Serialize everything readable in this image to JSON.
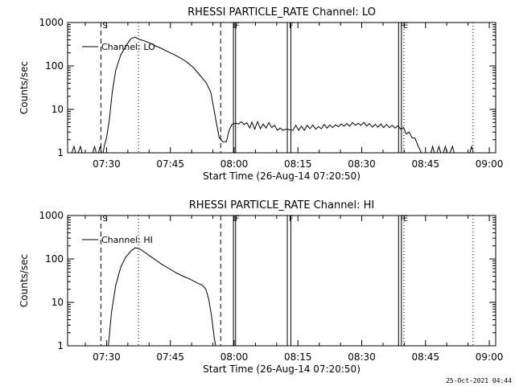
{
  "footer_timestamp": "25-Oct-2021 04:44",
  "chart_data": [
    {
      "type": "line",
      "title": "RHESSI PARTICLE_RATE Channel: LO",
      "xlabel": "Start Time (26-Aug-14 07:20:50)",
      "ylabel": "Counts/sec",
      "xlim": [
        "07:20:50",
        "09:01:30"
      ],
      "ylim": [
        1,
        1000
      ],
      "yscale": "log",
      "x_ticks": [
        "07:30",
        "07:45",
        "08:00",
        "08:15",
        "08:30",
        "08:45",
        "09:00"
      ],
      "y_ticks": [
        "1",
        "10",
        "100",
        "1000"
      ],
      "legend": {
        "label": "Channel: LO",
        "placement": "top-left"
      },
      "markers": [
        {
          "time": "07:28:40",
          "style": "dashed",
          "label": "S"
        },
        {
          "time": "07:56:50",
          "style": "dashed",
          "label": ""
        },
        {
          "time": "07:37:30",
          "style": "dotted",
          "label": ""
        },
        {
          "time": "07:59:50",
          "style": "solid",
          "label": "F"
        },
        {
          "time": "08:00:20",
          "style": "solid",
          "label": ""
        },
        {
          "time": "08:12:30",
          "style": "solid",
          "label": "F"
        },
        {
          "time": "08:13:20",
          "style": "solid",
          "label": ""
        },
        {
          "time": "08:38:40",
          "style": "solid",
          "label": "F"
        },
        {
          "time": "08:39:20",
          "style": "solid",
          "label": "E"
        },
        {
          "time": "08:39:55",
          "style": "dotted",
          "label": ""
        },
        {
          "time": "08:56:10",
          "style": "dotted",
          "label": ""
        }
      ],
      "series": [
        {
          "name": "Channel: LO",
          "points": [
            [
              "07:20:50",
              1
            ],
            [
              "07:21:30",
              0.8
            ],
            [
              "07:22:20",
              1.4
            ],
            [
              "07:23:00",
              0.8
            ],
            [
              "07:23:50",
              1.4
            ],
            [
              "07:24:30",
              0.8
            ],
            [
              "07:26:30",
              0.8
            ],
            [
              "07:27:10",
              1.4
            ],
            [
              "07:27:50",
              0.8
            ],
            [
              "07:28:30",
              1.4
            ],
            [
              "07:29:00",
              0.8
            ],
            [
              "07:29:30",
              1.5
            ],
            [
              "07:30:00",
              2.2
            ],
            [
              "07:30:40",
              6
            ],
            [
              "07:31:20",
              25
            ],
            [
              "07:32:10",
              80
            ],
            [
              "07:33:20",
              180
            ],
            [
              "07:34:40",
              300
            ],
            [
              "07:35:40",
              420
            ],
            [
              "07:36:40",
              460
            ],
            [
              "07:37:40",
              410
            ],
            [
              "07:38:50",
              380
            ],
            [
              "07:40:00",
              340
            ],
            [
              "07:41:30",
              290
            ],
            [
              "07:43:00",
              250
            ],
            [
              "07:44:30",
              210
            ],
            [
              "07:46:00",
              180
            ],
            [
              "07:47:30",
              150
            ],
            [
              "07:49:00",
              120
            ],
            [
              "07:50:30",
              90
            ],
            [
              "07:52:00",
              60
            ],
            [
              "07:53:30",
              40
            ],
            [
              "07:54:30",
              25
            ],
            [
              "07:55:20",
              9
            ],
            [
              "07:56:00",
              4
            ],
            [
              "07:56:30",
              2.2
            ],
            [
              "07:57:20",
              1.8
            ],
            [
              "07:58:10",
              1.8
            ],
            [
              "07:58:50",
              3.3
            ],
            [
              "07:59:30",
              4.5
            ],
            [
              "08:00:20",
              4.8
            ],
            [
              "08:01:00",
              4.6
            ],
            [
              "08:01:40",
              5.2
            ],
            [
              "08:02:20",
              4.5
            ],
            [
              "08:03:00",
              4.9
            ],
            [
              "08:03:40",
              3.7
            ],
            [
              "08:04:10",
              5.1
            ],
            [
              "08:04:50",
              3.5
            ],
            [
              "08:05:30",
              5.2
            ],
            [
              "08:06:10",
              3.6
            ],
            [
              "08:06:50",
              4.6
            ],
            [
              "08:07:30",
              3.7
            ],
            [
              "08:08:10",
              5.0
            ],
            [
              "08:08:50",
              3.8
            ],
            [
              "08:09:30",
              4.3
            ],
            [
              "08:10:10",
              3.3
            ],
            [
              "08:10:50",
              3.7
            ],
            [
              "08:11:30",
              3.3
            ],
            [
              "08:12:10",
              3.5
            ],
            [
              "08:13:50",
              3.3
            ],
            [
              "08:14:30",
              4.3
            ],
            [
              "08:15:10",
              3.3
            ],
            [
              "08:15:50",
              4.1
            ],
            [
              "08:16:30",
              3.3
            ],
            [
              "08:17:10",
              4.3
            ],
            [
              "08:17:50",
              3.6
            ],
            [
              "08:18:30",
              4.4
            ],
            [
              "08:19:10",
              3.5
            ],
            [
              "08:19:50",
              4.0
            ],
            [
              "08:20:30",
              3.6
            ],
            [
              "08:21:10",
              4.5
            ],
            [
              "08:21:50",
              3.7
            ],
            [
              "08:22:30",
              4.4
            ],
            [
              "08:23:10",
              3.8
            ],
            [
              "08:23:50",
              4.4
            ],
            [
              "08:24:30",
              4.0
            ],
            [
              "08:25:10",
              4.6
            ],
            [
              "08:25:50",
              4.1
            ],
            [
              "08:26:30",
              4.7
            ],
            [
              "08:27:10",
              4.1
            ],
            [
              "08:27:50",
              5.0
            ],
            [
              "08:28:30",
              4.3
            ],
            [
              "08:29:10",
              4.8
            ],
            [
              "08:29:50",
              4.3
            ],
            [
              "08:30:30",
              5.0
            ],
            [
              "08:31:10",
              4.1
            ],
            [
              "08:31:50",
              4.7
            ],
            [
              "08:32:30",
              3.9
            ],
            [
              "08:33:10",
              4.5
            ],
            [
              "08:33:50",
              3.9
            ],
            [
              "08:34:30",
              4.6
            ],
            [
              "08:35:10",
              3.8
            ],
            [
              "08:35:50",
              4.5
            ],
            [
              "08:36:30",
              3.8
            ],
            [
              "08:37:10",
              4.3
            ],
            [
              "08:37:50",
              3.7
            ],
            [
              "08:38:30",
              4.2
            ],
            [
              "08:39:10",
              3.5
            ],
            [
              "08:39:50",
              3.8
            ],
            [
              "08:40:30",
              2.7
            ],
            [
              "08:41:10",
              3.0
            ],
            [
              "08:41:50",
              2.2
            ],
            [
              "08:42:30",
              2.2
            ],
            [
              "08:43:10",
              1.5
            ],
            [
              "08:43:50",
              1.1
            ],
            [
              "08:44:20",
              0.8
            ],
            [
              "08:46:00",
              0.8
            ],
            [
              "08:46:40",
              1.4
            ],
            [
              "08:47:20",
              0.8
            ],
            [
              "08:48:10",
              1.4
            ],
            [
              "08:48:50",
              0.8
            ],
            [
              "08:49:40",
              1.4
            ],
            [
              "08:50:20",
              0.8
            ],
            [
              "08:51:20",
              1.4
            ],
            [
              "08:52:00",
              0.8
            ],
            [
              "08:55:10",
              0.8
            ],
            [
              "08:55:50",
              1.4
            ],
            [
              "08:56:30",
              0.8
            ]
          ]
        }
      ]
    },
    {
      "type": "line",
      "title": "RHESSI PARTICLE_RATE Channel: HI",
      "xlabel": "Start Time (26-Aug-14 07:20:50)",
      "ylabel": "Counts/sec",
      "xlim": [
        "07:20:50",
        "09:01:30"
      ],
      "ylim": [
        1,
        1000
      ],
      "yscale": "log",
      "x_ticks": [
        "07:30",
        "07:45",
        "08:00",
        "08:15",
        "08:30",
        "08:45",
        "09:00"
      ],
      "y_ticks": [
        "1",
        "10",
        "100",
        "1000"
      ],
      "legend": {
        "label": "Channel: HI",
        "placement": "top-left"
      },
      "markers": [
        {
          "time": "07:28:40",
          "style": "dashed",
          "label": "S"
        },
        {
          "time": "07:56:50",
          "style": "dashed",
          "label": ""
        },
        {
          "time": "07:37:30",
          "style": "dotted",
          "label": ""
        },
        {
          "time": "07:59:50",
          "style": "solid",
          "label": "F"
        },
        {
          "time": "08:00:20",
          "style": "solid",
          "label": ""
        },
        {
          "time": "08:12:30",
          "style": "solid",
          "label": "F"
        },
        {
          "time": "08:13:20",
          "style": "solid",
          "label": ""
        },
        {
          "time": "08:38:40",
          "style": "solid",
          "label": "F"
        },
        {
          "time": "08:39:20",
          "style": "solid",
          "label": "E"
        },
        {
          "time": "08:39:55",
          "style": "dotted",
          "label": ""
        },
        {
          "time": "08:56:10",
          "style": "dotted",
          "label": ""
        }
      ],
      "series": [
        {
          "name": "Channel: HI",
          "points": [
            [
              "07:30:20",
              0.8
            ],
            [
              "07:31:10",
              6
            ],
            [
              "07:32:10",
              25
            ],
            [
              "07:33:20",
              65
            ],
            [
              "07:34:30",
              110
            ],
            [
              "07:35:40",
              150
            ],
            [
              "07:36:40",
              180
            ],
            [
              "07:37:30",
              175
            ],
            [
              "07:38:40",
              150
            ],
            [
              "07:40:00",
              120
            ],
            [
              "07:41:30",
              95
            ],
            [
              "07:43:00",
              75
            ],
            [
              "07:44:40",
              60
            ],
            [
              "07:46:20",
              48
            ],
            [
              "07:48:00",
              40
            ],
            [
              "07:49:40",
              34
            ],
            [
              "07:51:20",
              28
            ],
            [
              "07:52:30",
              25
            ],
            [
              "07:53:20",
              20
            ],
            [
              "07:54:00",
              12
            ],
            [
              "07:54:40",
              5
            ],
            [
              "07:55:20",
              1.5
            ],
            [
              "07:55:50",
              0.8
            ]
          ]
        }
      ]
    }
  ]
}
